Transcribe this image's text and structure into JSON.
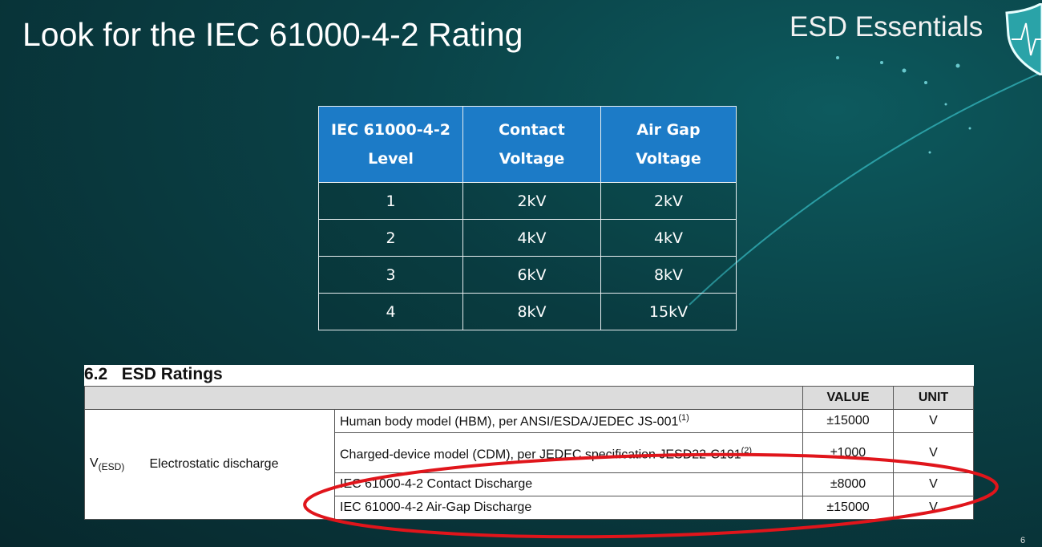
{
  "slide": {
    "title": "Look for the IEC 61000-4-2 Rating",
    "brand": "ESD Essentials",
    "page_number": "6"
  },
  "iec_table": {
    "headers": [
      [
        "IEC 61000-4-2",
        "Level"
      ],
      [
        "Contact",
        "Voltage"
      ],
      [
        "Air Gap",
        "Voltage"
      ]
    ],
    "rows": [
      [
        "1",
        "2kV",
        "2kV"
      ],
      [
        "2",
        "4kV",
        "4kV"
      ],
      [
        "3",
        "6kV",
        "8kV"
      ],
      [
        "4",
        "8kV",
        "15kV"
      ]
    ],
    "header_color": "#1c7bc7"
  },
  "esd_ratings": {
    "heading": "6.2   ESD Ratings",
    "col_value": "VALUE",
    "col_unit": "UNIT",
    "symbol": "V",
    "symbol_sub": "(ESD)",
    "parameter": "Electrostatic discharge",
    "rows": [
      {
        "condition": "Human body model (HBM), per ANSI/ESDA/JEDEC JS-001",
        "note": "(1)",
        "value": "±15000",
        "unit": "V"
      },
      {
        "condition": "Charged-device model (CDM), per JEDEC specification JESD22-C101",
        "note": "(2)",
        "value": "±1000",
        "unit": "V"
      },
      {
        "condition": "IEC 61000-4-2 Contact Discharge",
        "note": "",
        "value": "±8000",
        "unit": "V"
      },
      {
        "condition": "IEC 61000-4-2 Air-Gap Discharge",
        "note": "",
        "value": "±15000",
        "unit": "V"
      }
    ],
    "highlight_color": "#e0151b"
  }
}
